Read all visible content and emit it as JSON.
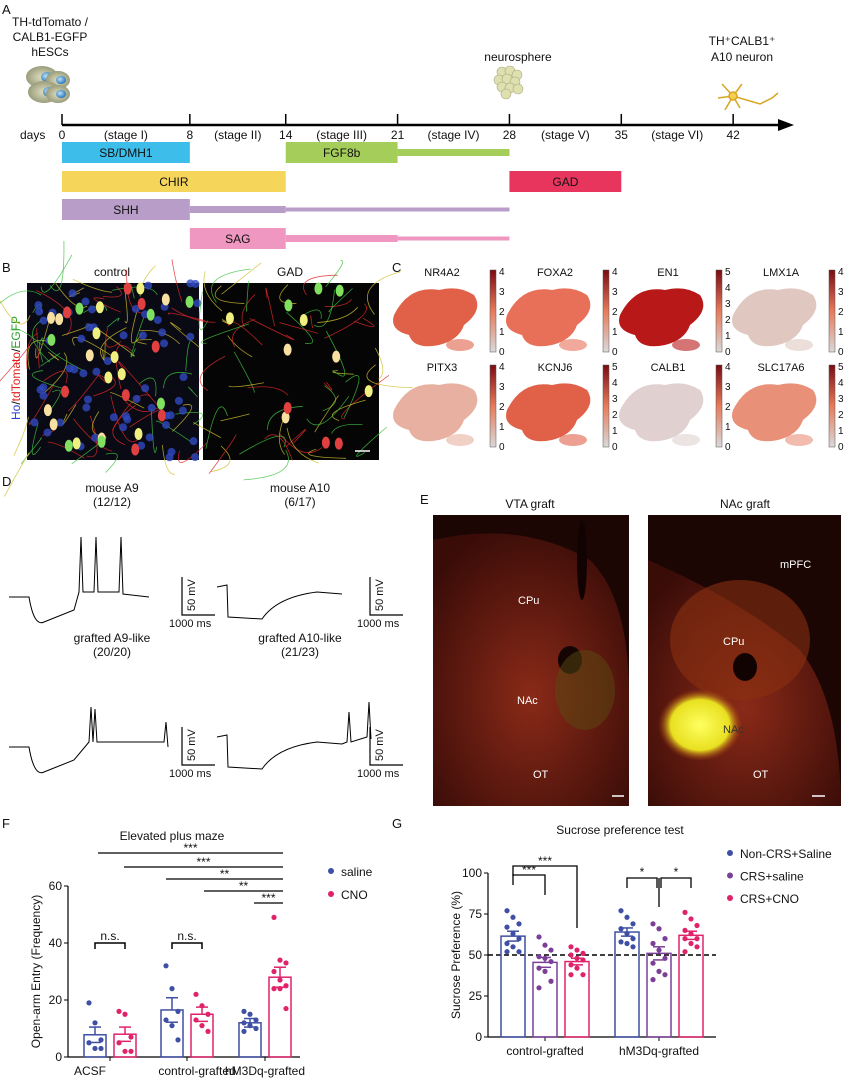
{
  "panels": {
    "a": "A",
    "b": "B",
    "c": "C",
    "d": "D",
    "e": "E",
    "f": "F",
    "g": "G"
  },
  "panel_a": {
    "cells_label": [
      "TH-tdTomato /",
      "CALB1-EGFP",
      "hESCs"
    ],
    "neurosphere_label": "neurosphere",
    "neuron_label_1": "TH⁺CALB1⁺",
    "neuron_label_2": "A10 neuron",
    "days_label": "days",
    "days": [
      0,
      8,
      14,
      21,
      28,
      35,
      42
    ],
    "day_labels": [
      "0",
      "8",
      "14",
      "21",
      "28",
      "35",
      "42"
    ],
    "stages": [
      "(stage I)",
      "(stage II)",
      "(stage III)",
      "(stage IV)",
      "(stage V)",
      "(stage VI)"
    ],
    "factors": [
      {
        "name": "SB/DMH1",
        "start": 0,
        "end": 8,
        "thin_end": 8,
        "color": "#3dbde9"
      },
      {
        "name": "FGF8b",
        "start": 14,
        "end": 21,
        "thin_end": 28,
        "color": "#a5cd59"
      },
      {
        "name": "CHIR",
        "start": 0,
        "end": 14,
        "thin_end": 14,
        "color": "#f5d55a"
      },
      {
        "name": "GAD",
        "start": 28,
        "end": 35,
        "thin_end": 35,
        "color": "#e8355e"
      },
      {
        "name": "SHH",
        "start": 0,
        "end": 8,
        "thin_end": 28,
        "color": "#b99dc9"
      },
      {
        "name": "SAG",
        "start": 8,
        "end": 14,
        "thin_end": 28,
        "color": "#ef97c0"
      }
    ]
  },
  "panel_b": {
    "control": "control",
    "gad": "GAD",
    "stain": [
      "Ho",
      "/",
      "tdTomato",
      "/",
      "EGFP"
    ]
  },
  "panel_c": {
    "genes": [
      {
        "name": "NR4A2",
        "max": 4
      },
      {
        "name": "FOXA2",
        "max": 4
      },
      {
        "name": "EN1",
        "max": 5
      },
      {
        "name": "LMX1A",
        "max": 4
      },
      {
        "name": "PITX3",
        "max": 4
      },
      {
        "name": "KCNJ6",
        "max": 5
      },
      {
        "name": "CALB1",
        "max": 4
      },
      {
        "name": "SLC17A6",
        "max": 5
      }
    ]
  },
  "panel_d": {
    "traces": [
      {
        "title": "mouse A9",
        "count": "(12/12)"
      },
      {
        "title": "mouse A10",
        "count": "(6/17)"
      },
      {
        "title": "grafted A9-like",
        "count": "(20/20)"
      },
      {
        "title": "grafted A10-like",
        "count": "(21/23)"
      }
    ],
    "scale_v": "50 mV",
    "scale_t": "1000 ms"
  },
  "panel_e": {
    "vta_title": "VTA graft",
    "nac_title": "NAc graft",
    "vta_regions": [
      "CPu",
      "NAc",
      "OT"
    ],
    "nac_regions": [
      "mPFC",
      "CPu",
      "NAc",
      "OT"
    ]
  },
  "chart_data": [
    {
      "type": "bar",
      "title": "Elevated plus maze",
      "ylabel": "Open-arm Entry (Frequency)",
      "ylim": [
        0,
        60
      ],
      "yticks": [
        0,
        20,
        40,
        60
      ],
      "categories": [
        "ACSF",
        "control-grafted",
        "hM3Dq-grafted"
      ],
      "legend_position": "right",
      "series": [
        {
          "name": "saline",
          "color": "#3f4fa3",
          "values": [
            7.8,
            16.5,
            12
          ],
          "sem": [
            2.7,
            4.3,
            1.5
          ],
          "points": [
            [
              19,
              12,
              6,
              5,
              3,
              3
            ],
            [
              32,
              24,
              16,
              13,
              11,
              6
            ],
            [
              16,
              15,
              13,
              12,
              11,
              10,
              9
            ]
          ]
        },
        {
          "name": "CNO",
          "color": "#e0226b",
          "values": [
            8,
            15,
            28
          ],
          "sem": [
            2.5,
            2.5,
            3.5
          ],
          "points": [
            [
              16,
              15,
              7,
              5,
              2,
              2
            ],
            [
              22,
              18,
              15,
              13,
              11,
              9
            ],
            [
              49,
              34,
              33,
              30,
              27,
              25,
              24,
              24,
              17
            ]
          ]
        }
      ],
      "significance": [
        {
          "label": "***"
        },
        {
          "label": "***"
        },
        {
          "label": "**"
        },
        {
          "label": "**"
        },
        {
          "label": "***"
        },
        {
          "label": "n.s."
        },
        {
          "label": "n.s."
        }
      ]
    },
    {
      "type": "bar",
      "title": "Sucrose preference test",
      "ylabel": "Sucrose Preference  (%)",
      "ylim": [
        0,
        100
      ],
      "yticks": [
        0,
        25,
        50,
        75,
        100
      ],
      "reference_line": 50,
      "categories": [
        "control-grafted",
        "hM3Dq-grafted"
      ],
      "legend_position": "top-right",
      "series": [
        {
          "name": "Non-CRS+Saline",
          "color": "#3f4fa3",
          "values": [
            61.5,
            64
          ],
          "sem": [
            3,
            2.5
          ],
          "points": [
            [
              77,
              73,
              69,
              67,
              63,
              60,
              57,
              55,
              52,
              52
            ],
            [
              77,
              73,
              69,
              66,
              63,
              60,
              58,
              57,
              55
            ]
          ]
        },
        {
          "name": "CRS+saline",
          "color": "#7b3f98",
          "values": [
            45.5,
            51
          ],
          "sem": [
            3,
            4
          ],
          "points": [
            [
              61,
              56,
              53,
              49,
              48,
              46,
              42,
              40,
              34,
              30
            ],
            [
              69,
              66,
              60,
              57,
              53,
              48,
              45,
              40,
              38,
              35
            ]
          ]
        },
        {
          "name": "CRS+CNO",
          "color": "#e0226b",
          "values": [
            46,
            62
          ],
          "sem": [
            2,
            2.5
          ],
          "points": [
            [
              55,
              53,
              51,
              50,
              48,
              47,
              44,
              42,
              38,
              38
            ],
            [
              76,
              72,
              68,
              65,
              63,
              60,
              60,
              57,
              55,
              52
            ]
          ]
        }
      ],
      "significance": [
        {
          "label": "***"
        },
        {
          "label": "***"
        },
        {
          "label": "*"
        },
        {
          "label": "*"
        }
      ]
    }
  ]
}
